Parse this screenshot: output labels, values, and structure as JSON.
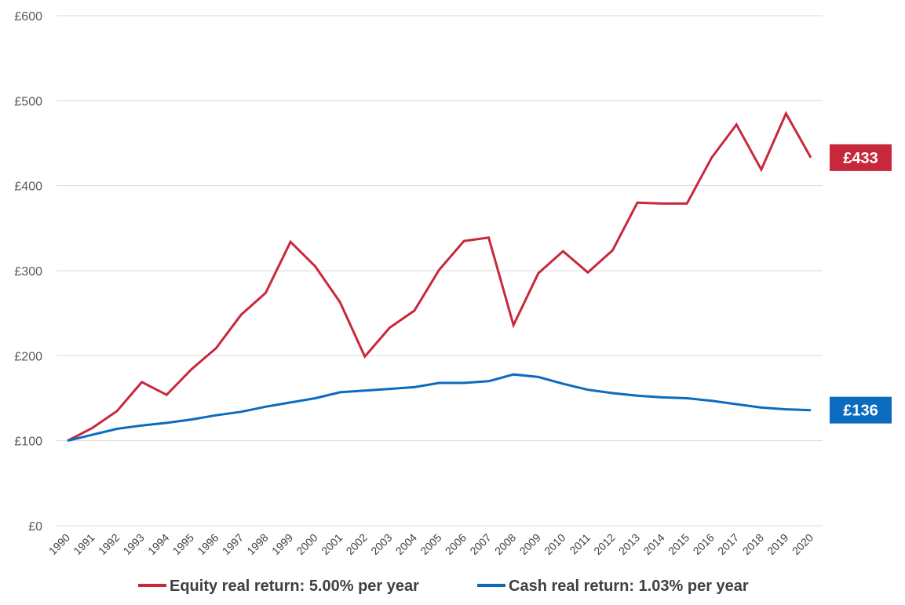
{
  "chart_data": {
    "type": "line",
    "title": "",
    "xlabel": "",
    "ylabel": "",
    "ylim": [
      0,
      600
    ],
    "y_ticks": [
      "£0",
      "£100",
      "£200",
      "£300",
      "£400",
      "£500",
      "£600"
    ],
    "x": [
      "1990",
      "1991",
      "1992",
      "1993",
      "1994",
      "1995",
      "1996",
      "1997",
      "1998",
      "1999",
      "2000",
      "2001",
      "2002",
      "2003",
      "2004",
      "2005",
      "2006",
      "2007",
      "2008",
      "2009",
      "2010",
      "2011",
      "2012",
      "2013",
      "2014",
      "2015",
      "2016",
      "2017",
      "2018",
      "2019",
      "2020"
    ],
    "grid": true,
    "legend_position": "bottom",
    "series": [
      {
        "name": "Equity real return: 5.00% per year",
        "color": "#c8283c",
        "values": [
          100,
          115,
          135,
          169,
          154,
          184,
          209,
          248,
          274,
          334,
          305,
          263,
          199,
          233,
          253,
          301,
          335,
          339,
          236,
          297,
          323,
          298,
          324,
          380,
          379,
          379,
          433,
          472,
          419,
          485,
          433
        ],
        "end_label": "£433"
      },
      {
        "name": "Cash real return: 1.03% per year",
        "color": "#0b6bbf",
        "values": [
          100,
          107,
          114,
          118,
          121,
          125,
          130,
          134,
          140,
          145,
          150,
          157,
          159,
          161,
          163,
          168,
          168,
          170,
          178,
          175,
          167,
          160,
          156,
          153,
          151,
          150,
          147,
          143,
          139,
          137,
          136
        ],
        "end_label": "£136"
      }
    ]
  }
}
